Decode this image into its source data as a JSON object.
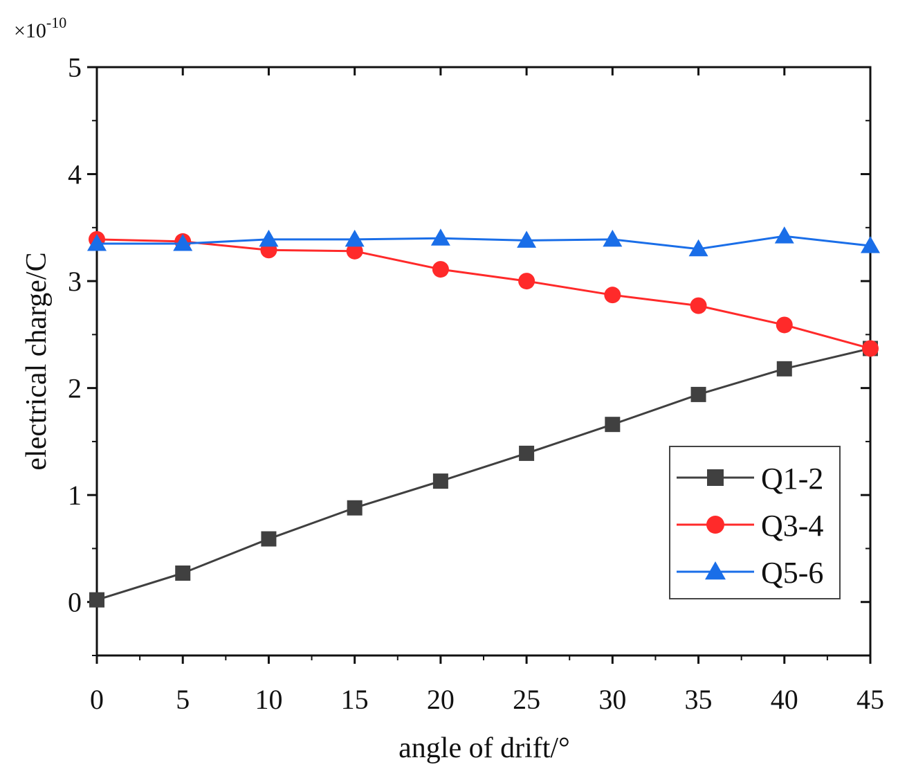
{
  "chart_data": {
    "type": "line",
    "title": "",
    "xlabel": "angle of drift/°",
    "ylabel": "electrical charge/C",
    "y_multiplier_base": "×10",
    "y_multiplier_exp": "-10",
    "xlim": [
      0,
      45
    ],
    "ylim": [
      -0.5,
      5
    ],
    "x_ticks": [
      0,
      5,
      10,
      15,
      20,
      25,
      30,
      35,
      40,
      45
    ],
    "x_tick_labels": [
      "0",
      "5",
      "10",
      "15",
      "20",
      "25",
      "30",
      "35",
      "40",
      "45"
    ],
    "y_ticks": [
      0,
      1,
      2,
      3,
      4,
      5
    ],
    "y_tick_labels": [
      "0",
      "1",
      "2",
      "3",
      "4",
      "5"
    ],
    "grid": false,
    "legend_position": "lower-right",
    "x": [
      0,
      5,
      10,
      15,
      20,
      25,
      30,
      35,
      40,
      45
    ],
    "series": [
      {
        "name": "Q1-2",
        "color": "#404040",
        "marker": "square",
        "values": [
          0.02,
          0.27,
          0.59,
          0.88,
          1.13,
          1.39,
          1.66,
          1.94,
          2.18,
          2.37
        ]
      },
      {
        "name": "Q3-4",
        "color": "#ff2a2a",
        "marker": "circle",
        "values": [
          3.39,
          3.37,
          3.29,
          3.28,
          3.11,
          3.0,
          2.87,
          2.77,
          2.59,
          2.37
        ]
      },
      {
        "name": "Q5-6",
        "color": "#1a6ee8",
        "marker": "triangle",
        "values": [
          3.35,
          3.35,
          3.39,
          3.39,
          3.4,
          3.38,
          3.39,
          3.3,
          3.42,
          3.33
        ]
      }
    ]
  }
}
